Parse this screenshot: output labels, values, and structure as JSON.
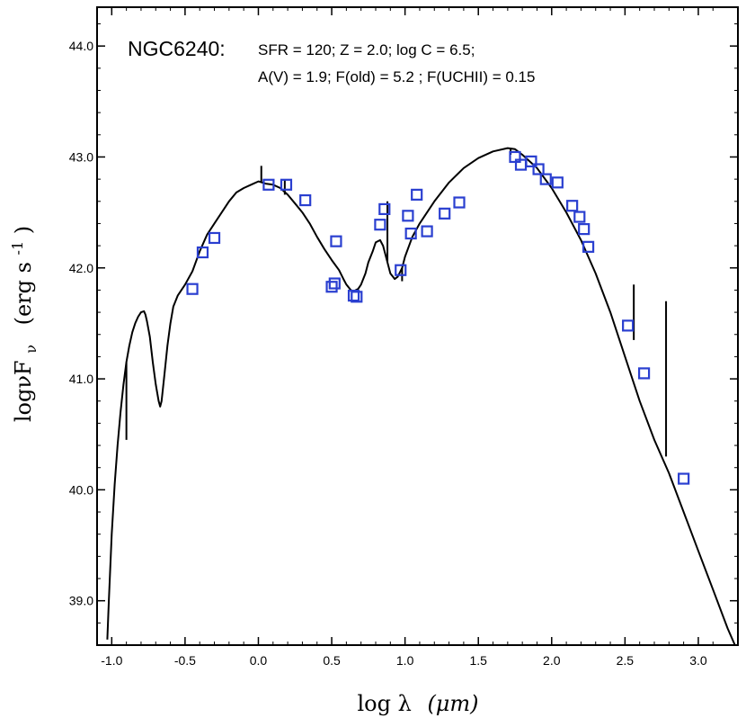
{
  "chart_data": {
    "type": "line",
    "title": "NGC6240:",
    "annotation_line1": "SFR = 120; Z = 2.0; log C = 6.5;",
    "annotation_line2": "A(V) = 1.9; F(old) = 5.2 ; F(UCHII) = 0.15",
    "xlabel_main": "log λ",
    "xlabel_unit": "(μm)",
    "ylabel_main": "logνF",
    "ylabel_sub": "ν",
    "ylabel_unit": "(erg s",
    "ylabel_sup": "-1",
    "ylabel_close": ")",
    "xlim": [
      -1.1,
      3.27
    ],
    "ylim": [
      38.6,
      44.35
    ],
    "xticks": [
      -1.0,
      -0.5,
      0.0,
      0.5,
      1.0,
      1.5,
      2.0,
      2.5,
      3.0
    ],
    "xtick_labels": [
      "-1.0",
      "-0.5",
      "0.0",
      "0.5",
      "1.0",
      "1.5",
      "2.0",
      "2.5",
      "3.0"
    ],
    "yticks": [
      39.0,
      40.0,
      41.0,
      42.0,
      43.0,
      44.0
    ],
    "ytick_labels": [
      "39.0",
      "40.0",
      "41.0",
      "42.0",
      "43.0",
      "44.0"
    ],
    "line_color": "#000000",
    "marker_color": "#2a3fd0",
    "series": [
      {
        "name": "model",
        "style": "line",
        "x": [
          -1.03,
          -1.02,
          -1.0,
          -0.98,
          -0.96,
          -0.94,
          -0.92,
          -0.9,
          -0.88,
          -0.86,
          -0.84,
          -0.82,
          -0.8,
          -0.78,
          -0.77,
          -0.76,
          -0.74,
          -0.72,
          -0.7,
          -0.68,
          -0.67,
          -0.66,
          -0.64,
          -0.62,
          -0.6,
          -0.58,
          -0.55,
          -0.5,
          -0.45,
          -0.4,
          -0.35,
          -0.3,
          -0.25,
          -0.2,
          -0.15,
          -0.1,
          -0.05,
          0.0,
          0.05,
          0.1,
          0.15,
          0.2,
          0.25,
          0.3,
          0.35,
          0.4,
          0.45,
          0.5,
          0.55,
          0.58,
          0.6,
          0.63,
          0.65,
          0.68,
          0.7,
          0.73,
          0.75,
          0.78,
          0.8,
          0.83,
          0.85,
          0.88,
          0.9,
          0.93,
          0.95,
          0.98,
          1.0,
          1.05,
          1.1,
          1.2,
          1.3,
          1.4,
          1.5,
          1.6,
          1.7,
          1.75,
          1.8,
          1.9,
          2.0,
          2.1,
          2.2,
          2.3,
          2.4,
          2.5,
          2.6,
          2.7,
          2.8,
          2.9,
          3.0,
          3.1,
          3.2,
          3.25
        ],
        "y": [
          38.65,
          39.0,
          39.6,
          40.05,
          40.4,
          40.7,
          40.95,
          41.15,
          41.3,
          41.42,
          41.5,
          41.56,
          41.6,
          41.61,
          41.58,
          41.52,
          41.38,
          41.15,
          40.95,
          40.8,
          40.75,
          40.8,
          41.05,
          41.3,
          41.5,
          41.65,
          41.75,
          41.85,
          41.97,
          42.15,
          42.3,
          42.4,
          42.5,
          42.6,
          42.68,
          42.72,
          42.75,
          42.78,
          42.76,
          42.75,
          42.72,
          42.66,
          42.58,
          42.5,
          42.4,
          42.28,
          42.17,
          42.07,
          41.98,
          41.9,
          41.85,
          41.8,
          41.79,
          41.81,
          41.85,
          41.95,
          42.05,
          42.15,
          42.23,
          42.25,
          42.2,
          42.05,
          41.95,
          41.9,
          41.92,
          42.0,
          42.1,
          42.28,
          42.4,
          42.6,
          42.77,
          42.9,
          42.99,
          43.05,
          43.08,
          43.07,
          43.02,
          42.9,
          42.72,
          42.5,
          42.25,
          41.95,
          41.6,
          41.2,
          40.8,
          40.45,
          40.15,
          39.8,
          39.45,
          39.1,
          38.75,
          38.6
        ]
      },
      {
        "name": "observed",
        "style": "markers",
        "x": [
          -0.45,
          -0.38,
          -0.3,
          0.07,
          0.19,
          0.32,
          0.5,
          0.52,
          0.53,
          0.65,
          0.67,
          0.83,
          0.86,
          0.97,
          1.02,
          1.04,
          1.08,
          1.15,
          1.27,
          1.37,
          1.75,
          1.79,
          1.86,
          1.91,
          1.96,
          2.04,
          2.14,
          2.19,
          2.22,
          2.25,
          2.52,
          2.63,
          2.9
        ],
        "y": [
          41.81,
          42.14,
          42.27,
          42.75,
          42.75,
          42.61,
          41.83,
          41.86,
          42.24,
          41.75,
          41.74,
          42.39,
          42.53,
          41.98,
          42.47,
          42.31,
          42.66,
          42.33,
          42.49,
          42.59,
          43.0,
          42.93,
          42.96,
          42.89,
          42.8,
          42.77,
          42.56,
          42.46,
          42.35,
          42.19,
          41.48,
          41.05,
          40.1
        ]
      }
    ],
    "spikes": [
      {
        "x": -0.9,
        "from": 41.15,
        "to": 40.45
      },
      {
        "x": 0.02,
        "from": 42.77,
        "to": 42.92
      },
      {
        "x": 0.18,
        "from": 42.66,
        "to": 42.8
      },
      {
        "x": 0.88,
        "from": 42.05,
        "to": 42.6
      },
      {
        "x": 0.98,
        "from": 42.0,
        "to": 41.88
      },
      {
        "x": 1.72,
        "from": 43.07,
        "to": 43.02
      },
      {
        "x": 2.56,
        "from": 41.35,
        "to": 41.85
      },
      {
        "x": 2.78,
        "from": 40.3,
        "to": 41.7
      }
    ]
  }
}
